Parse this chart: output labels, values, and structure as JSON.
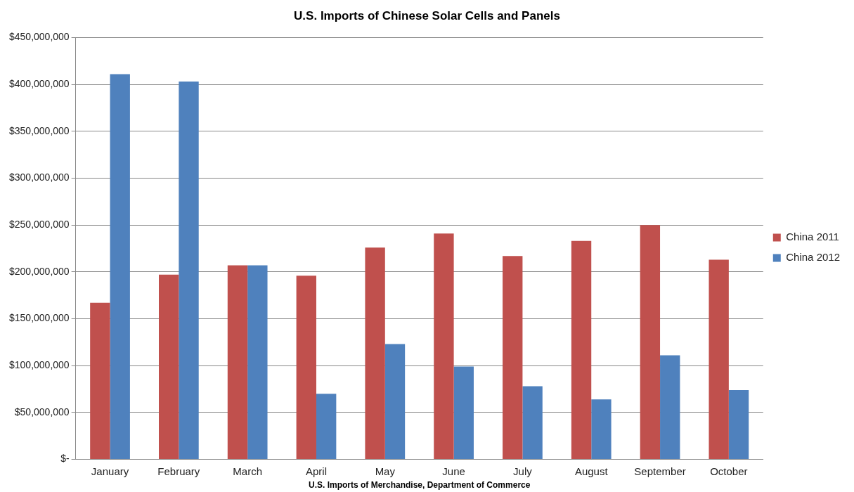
{
  "chart_data": {
    "type": "bar",
    "title": "U.S. Imports of Chinese Solar Cells and Panels",
    "xlabel": "U.S. Imports of Merchandise, Department of Commerce",
    "categories": [
      "January",
      "February",
      "March",
      "April",
      "May",
      "June",
      "July",
      "August",
      "September",
      "October"
    ],
    "series": [
      {
        "name": "China 2011",
        "color": "#c0504d",
        "values": [
          167000000,
          197000000,
          207000000,
          196000000,
          226000000,
          241000000,
          217000000,
          233000000,
          250000000,
          213000000
        ]
      },
      {
        "name": "China 2012",
        "color": "#4f81bd",
        "values": [
          411000000,
          403000000,
          207000000,
          70000000,
          123000000,
          99000000,
          78000000,
          64000000,
          111000000,
          74000000
        ]
      }
    ],
    "ylim": [
      0,
      450000000
    ],
    "yticks": [
      {
        "value": 0,
        "label": "$-"
      },
      {
        "value": 50000000,
        "label": "$50,000,000"
      },
      {
        "value": 100000000,
        "label": "$100,000,000"
      },
      {
        "value": 150000000,
        "label": "$150,000,000"
      },
      {
        "value": 200000000,
        "label": "$200,000,000"
      },
      {
        "value": 250000000,
        "label": "$250,000,000"
      },
      {
        "value": 300000000,
        "label": "$300,000,000"
      },
      {
        "value": 350000000,
        "label": "$350,000,000"
      },
      {
        "value": 400000000,
        "label": "$400,000,000"
      },
      {
        "value": 450000000,
        "label": "$450,000,000"
      }
    ],
    "grid": "y",
    "legend": "right"
  }
}
